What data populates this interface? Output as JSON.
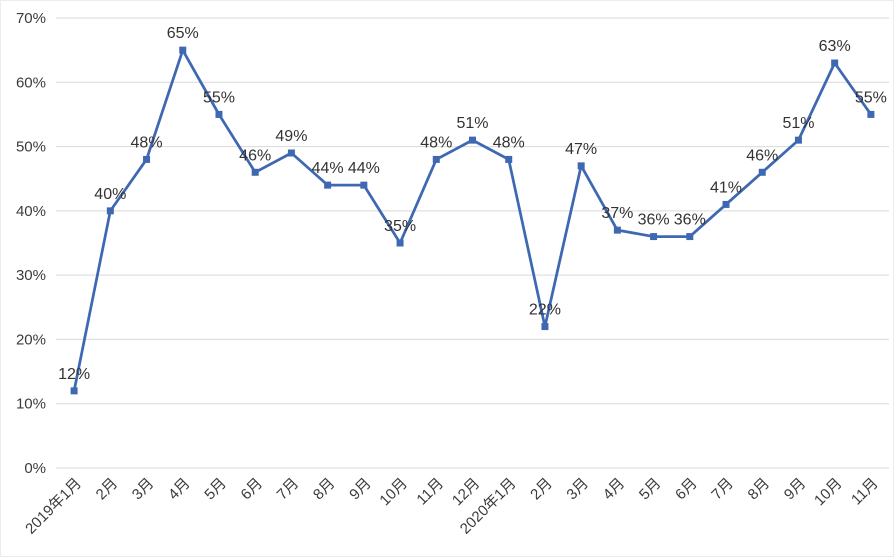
{
  "chart_data": {
    "type": "line",
    "title": "",
    "categories": [
      "2019年1月",
      "2月",
      "3月",
      "4月",
      "5月",
      "6月",
      "7月",
      "8月",
      "9月",
      "10月",
      "11月",
      "12月",
      "2020年1月",
      "2月",
      "3月",
      "4月",
      "5月",
      "6月",
      "7月",
      "8月",
      "9月",
      "10月",
      "11月"
    ],
    "values": [
      12,
      40,
      48,
      65,
      55,
      46,
      49,
      44,
      44,
      35,
      48,
      51,
      48,
      22,
      47,
      37,
      36,
      36,
      41,
      46,
      51,
      63,
      55
    ],
    "data_labels": [
      "12%",
      "40%",
      "48%",
      "65%",
      "55%",
      "46%",
      "49%",
      "44%",
      "44%",
      "35%",
      "48%",
      "51%",
      "48%",
      "22%",
      "47%",
      "37%",
      "36%",
      "36%",
      "41%",
      "46%",
      "51%",
      "63%",
      "55%"
    ],
    "xlabel": "",
    "ylabel": "",
    "ylim": [
      0,
      70
    ],
    "y_tick_interval": 10,
    "y_tick_labels": [
      "0%",
      "10%",
      "20%",
      "30%",
      "40%",
      "50%",
      "60%",
      "70%"
    ],
    "grid": true,
    "legend": "none",
    "x_label_rotation": -45,
    "marker": "square",
    "colors": {
      "series_line": "#3E68B2",
      "marker_fill": "#3E68B2",
      "gridline": "#D9D9D9",
      "axis_text": "#3B3B3B",
      "data_label_text": "#333333",
      "background": "#FFFFFF"
    }
  }
}
